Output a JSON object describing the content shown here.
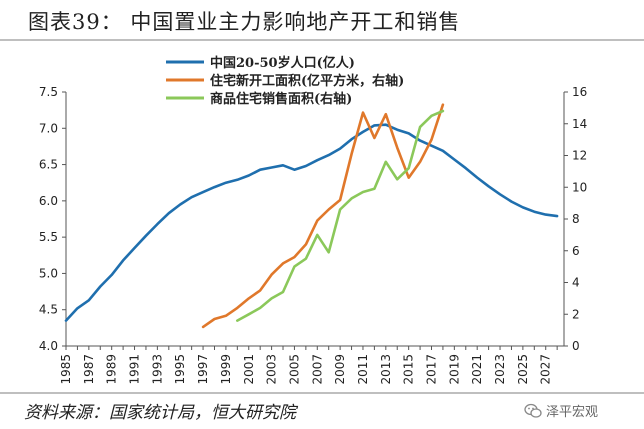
{
  "header": {
    "title": "图表39：    中国置业主力影响地产开工和销售"
  },
  "footer": {
    "source": "资料来源：国家统计局，恒大研究院",
    "watermark": "泽平宏观"
  },
  "chart_data": {
    "type": "line",
    "title": "图表39：    中国置业主力影响地产开工和销售",
    "x_ticks": [
      "1985",
      "1987",
      "1989",
      "1991",
      "1993",
      "1995",
      "1997",
      "1999",
      "2001",
      "2003",
      "2005",
      "2007",
      "2009",
      "2011",
      "2013",
      "2015",
      "2017",
      "2019",
      "2021",
      "2023",
      "2025",
      "2027"
    ],
    "y_left": {
      "ticks": [
        "4.0",
        "4.5",
        "5.0",
        "5.5",
        "6.0",
        "6.5",
        "7.0",
        "7.5"
      ],
      "range": [
        4.0,
        7.5
      ]
    },
    "y_right": {
      "ticks": [
        "0",
        "2",
        "4",
        "6",
        "8",
        "10",
        "12",
        "14",
        "16"
      ],
      "range": [
        0,
        16
      ]
    },
    "legend_position": "top-center",
    "series": [
      {
        "name": "中国20-50岁人口(亿人)",
        "axis": "left",
        "color": "#1f6fae",
        "points": [
          [
            1985,
            4.35
          ],
          [
            1986,
            4.52
          ],
          [
            1987,
            4.63
          ],
          [
            1988,
            4.82
          ],
          [
            1989,
            4.98
          ],
          [
            1990,
            5.18
          ],
          [
            1991,
            5.35
          ],
          [
            1992,
            5.52
          ],
          [
            1993,
            5.68
          ],
          [
            1994,
            5.83
          ],
          [
            1995,
            5.95
          ],
          [
            1996,
            6.05
          ],
          [
            1997,
            6.12
          ],
          [
            1998,
            6.19
          ],
          [
            1999,
            6.25
          ],
          [
            2000,
            6.29
          ],
          [
            2001,
            6.35
          ],
          [
            2002,
            6.43
          ],
          [
            2003,
            6.46
          ],
          [
            2004,
            6.49
          ],
          [
            2005,
            6.43
          ],
          [
            2006,
            6.48
          ],
          [
            2007,
            6.56
          ],
          [
            2008,
            6.63
          ],
          [
            2009,
            6.72
          ],
          [
            2010,
            6.85
          ],
          [
            2011,
            6.95
          ],
          [
            2012,
            7.04
          ],
          [
            2013,
            7.05
          ],
          [
            2014,
            6.98
          ],
          [
            2015,
            6.93
          ],
          [
            2016,
            6.83
          ],
          [
            2017,
            6.76
          ],
          [
            2018,
            6.69
          ],
          [
            2019,
            6.57
          ],
          [
            2020,
            6.45
          ],
          [
            2021,
            6.32
          ],
          [
            2022,
            6.2
          ],
          [
            2023,
            6.09
          ],
          [
            2024,
            5.99
          ],
          [
            2025,
            5.91
          ],
          [
            2026,
            5.85
          ],
          [
            2027,
            5.81
          ],
          [
            2028,
            5.79
          ]
        ]
      },
      {
        "name": "住宅新开工面积(亿平方米，右轴)",
        "axis": "right",
        "color": "#e0782b",
        "points": [
          [
            1997,
            1.2
          ],
          [
            1998,
            1.7
          ],
          [
            1999,
            1.9
          ],
          [
            2000,
            2.4
          ],
          [
            2001,
            3.0
          ],
          [
            2002,
            3.5
          ],
          [
            2003,
            4.5
          ],
          [
            2004,
            5.2
          ],
          [
            2005,
            5.6
          ],
          [
            2006,
            6.4
          ],
          [
            2007,
            7.9
          ],
          [
            2008,
            8.6
          ],
          [
            2009,
            9.2
          ],
          [
            2010,
            12.1
          ],
          [
            2011,
            14.7
          ],
          [
            2012,
            13.1
          ],
          [
            2013,
            14.6
          ],
          [
            2014,
            12.5
          ],
          [
            2015,
            10.6
          ],
          [
            2016,
            11.6
          ],
          [
            2017,
            13.0
          ],
          [
            2018,
            15.2
          ]
        ]
      },
      {
        "name": "商品住宅销售面积(右轴)",
        "axis": "right",
        "color": "#8bc85a",
        "points": [
          [
            2000,
            1.6
          ],
          [
            2001,
            2.0
          ],
          [
            2002,
            2.4
          ],
          [
            2003,
            3.0
          ],
          [
            2004,
            3.4
          ],
          [
            2005,
            5.0
          ],
          [
            2006,
            5.5
          ],
          [
            2007,
            7.0
          ],
          [
            2008,
            5.9
          ],
          [
            2009,
            8.6
          ],
          [
            2010,
            9.3
          ],
          [
            2011,
            9.7
          ],
          [
            2012,
            9.9
          ],
          [
            2013,
            11.6
          ],
          [
            2014,
            10.5
          ],
          [
            2015,
            11.2
          ],
          [
            2016,
            13.8
          ],
          [
            2017,
            14.5
          ],
          [
            2018,
            14.8
          ]
        ]
      }
    ]
  }
}
